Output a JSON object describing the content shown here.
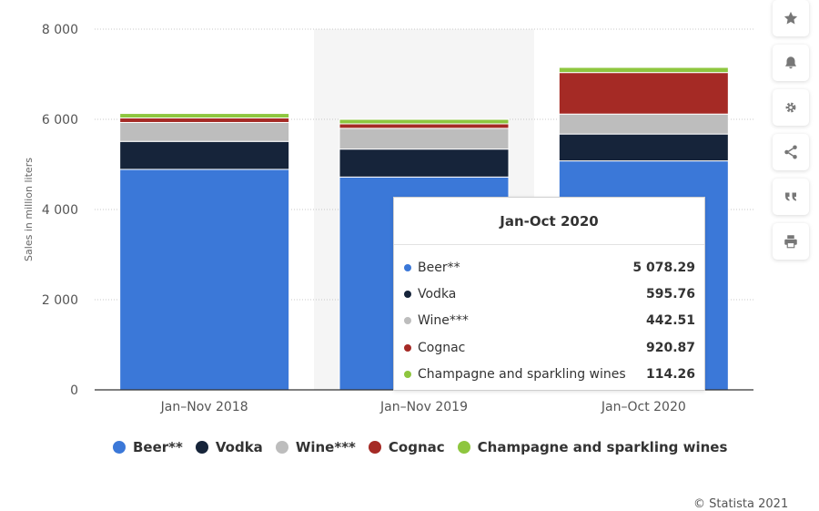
{
  "chart_data": {
    "type": "bar",
    "stacked": true,
    "categories": [
      "Jan–Nov 2018",
      "Jan–Nov 2019",
      "Jan–Oct 2020"
    ],
    "ylabel": "Sales in million liters",
    "ylim": [
      0,
      8000
    ],
    "yticks": [
      0,
      2000,
      4000,
      6000,
      8000
    ],
    "ytick_labels": [
      "0",
      "2 000",
      "4 000",
      "6 000",
      "8 000"
    ],
    "grid": true,
    "legend_position": "bottom",
    "series": [
      {
        "name": "Beer**",
        "color": "#3b78d8",
        "values": [
          4890,
          4720,
          5078.29
        ]
      },
      {
        "name": "Vodka",
        "color": "#16243a",
        "values": [
          620,
          620,
          595.76
        ]
      },
      {
        "name": "Wine***",
        "color": "#bdbdbd",
        "values": [
          420,
          460,
          442.51
        ]
      },
      {
        "name": "Cognac",
        "color": "#a52a25",
        "values": [
          100,
          100,
          920.87
        ]
      },
      {
        "name": "Champagne and sparkling wines",
        "color": "#8ec63f",
        "values": [
          100,
          100,
          114.26
        ]
      }
    ]
  },
  "tooltip": {
    "title": "Jan-Oct 2020",
    "rows": [
      {
        "name": "Beer**",
        "value": "5 078.29",
        "color": "#3b78d8"
      },
      {
        "name": "Vodka",
        "value": "595.76",
        "color": "#16243a"
      },
      {
        "name": "Wine***",
        "value": "442.51",
        "color": "#bdbdbd"
      },
      {
        "name": "Cognac",
        "value": "920.87",
        "color": "#a52a25"
      },
      {
        "name": "Champagne and sparkling wines",
        "value": "114.26",
        "color": "#8ec63f"
      }
    ]
  },
  "legend": [
    {
      "name": "Beer**",
      "color": "#3b78d8"
    },
    {
      "name": "Vodka",
      "color": "#16243a"
    },
    {
      "name": "Wine***",
      "color": "#bdbdbd"
    },
    {
      "name": "Cognac",
      "color": "#a52a25"
    },
    {
      "name": "Champagne and sparkling wines",
      "color": "#8ec63f"
    }
  ],
  "toolbar": [
    {
      "icon": "star-icon"
    },
    {
      "icon": "bell-icon"
    },
    {
      "icon": "gear-icon"
    },
    {
      "icon": "share-icon"
    },
    {
      "icon": "quote-icon"
    },
    {
      "icon": "print-icon"
    }
  ],
  "credit": "© Statista 2021"
}
